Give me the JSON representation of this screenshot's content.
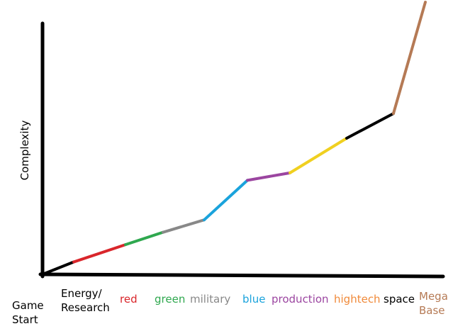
{
  "chart_data": {
    "type": "line",
    "ylabel": "Complexity",
    "segments": [
      {
        "from": "Game Start",
        "to": "Energy/ Research",
        "y0": 0,
        "y1": 5,
        "color": "#000000"
      },
      {
        "from": "Energy/ Research",
        "to": "red",
        "y0": 5,
        "y1": 12,
        "color": "#d9262b"
      },
      {
        "from": "red",
        "to": "green",
        "y0": 12,
        "y1": 17,
        "color": "#2fa84f"
      },
      {
        "from": "green",
        "to": "military",
        "y0": 17,
        "y1": 22,
        "color": "#888888"
      },
      {
        "from": "military",
        "to": "blue",
        "y0": 22,
        "y1": 38,
        "color": "#1aa3dc"
      },
      {
        "from": "blue",
        "to": "production",
        "y0": 38,
        "y1": 41,
        "color": "#9b45a0"
      },
      {
        "from": "production",
        "to": "hightech",
        "y0": 41,
        "y1": 55,
        "color": "#f0d020"
      },
      {
        "from": "hightech",
        "to": "space",
        "y0": 55,
        "y1": 65,
        "color": "#000000"
      },
      {
        "from": "space",
        "to": "Mega Base",
        "y0": 65,
        "y1": 110,
        "color": "#b57a55"
      }
    ],
    "categories": [
      {
        "label": "Game Start",
        "lines": [
          "Game",
          "Start"
        ],
        "color": "#000000"
      },
      {
        "label": "Energy/ Research",
        "lines": [
          "Energy/",
          "Research"
        ],
        "color": "#000000"
      },
      {
        "label": "red",
        "lines": [
          "red"
        ],
        "color": "#d9262b"
      },
      {
        "label": "green",
        "lines": [
          "green"
        ],
        "color": "#2fa84f"
      },
      {
        "label": "military",
        "lines": [
          "military"
        ],
        "color": "#888888"
      },
      {
        "label": "blue",
        "lines": [
          "blue"
        ],
        "color": "#1aa3dc"
      },
      {
        "label": "production",
        "lines": [
          "production"
        ],
        "color": "#9b45a0"
      },
      {
        "label": "hightech",
        "lines": [
          "hightech"
        ],
        "color": "#f08a3a"
      },
      {
        "label": "space",
        "lines": [
          "space"
        ],
        "color": "#000000"
      },
      {
        "label": "Mega Base",
        "lines": [
          "Mega",
          "Base"
        ],
        "color": "#b57a55"
      }
    ],
    "ylim": [
      0,
      110
    ],
    "grid": false,
    "legend": "none"
  }
}
